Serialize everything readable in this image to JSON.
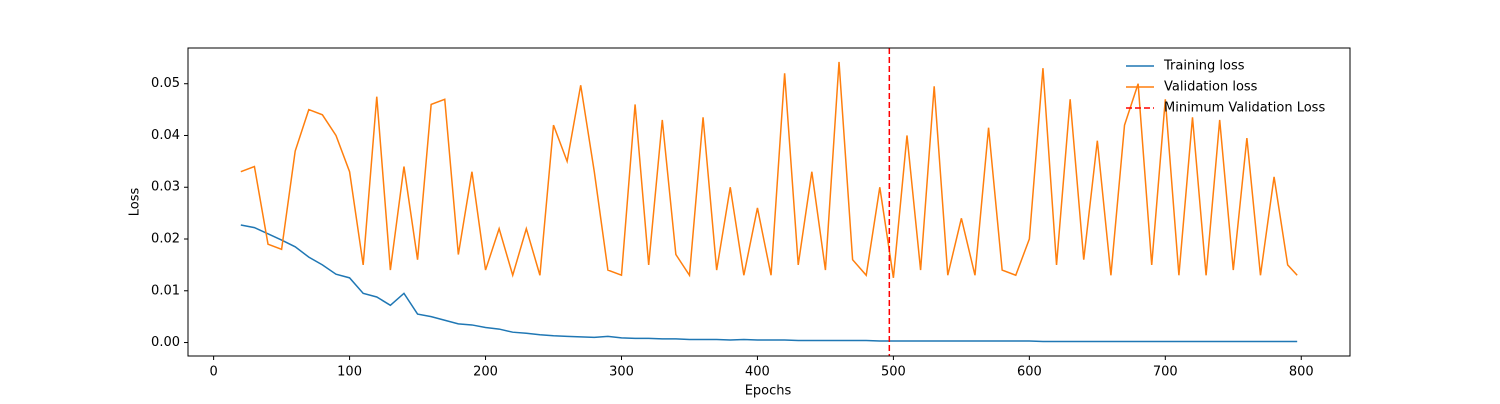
{
  "chart_data": {
    "type": "line",
    "xlabel": "Epochs",
    "ylabel": "Loss",
    "x": [
      20,
      30,
      40,
      50,
      60,
      70,
      80,
      90,
      100,
      110,
      120,
      130,
      140,
      150,
      160,
      170,
      180,
      190,
      200,
      210,
      220,
      230,
      240,
      250,
      260,
      270,
      280,
      290,
      300,
      310,
      320,
      330,
      340,
      350,
      360,
      370,
      380,
      390,
      400,
      410,
      420,
      430,
      440,
      450,
      460,
      470,
      480,
      490,
      500,
      510,
      520,
      530,
      540,
      550,
      560,
      570,
      580,
      590,
      600,
      610,
      620,
      630,
      640,
      650,
      660,
      670,
      680,
      690,
      700,
      710,
      720,
      730,
      740,
      750,
      760,
      770,
      780,
      790,
      797
    ],
    "series": [
      {
        "name": "Training loss",
        "color": "#1f77b4",
        "values": [
          0.0227,
          0.0222,
          0.021,
          0.0198,
          0.0185,
          0.0165,
          0.015,
          0.0132,
          0.0125,
          0.0095,
          0.0088,
          0.0072,
          0.0095,
          0.0055,
          0.005,
          0.0043,
          0.0036,
          0.0034,
          0.0029,
          0.0026,
          0.002,
          0.0018,
          0.0015,
          0.0013,
          0.0012,
          0.0011,
          0.001,
          0.0012,
          0.0009,
          0.0008,
          0.0008,
          0.0007,
          0.0007,
          0.0006,
          0.0006,
          0.0006,
          0.0005,
          0.0006,
          0.0005,
          0.0005,
          0.0005,
          0.0004,
          0.0004,
          0.0004,
          0.0004,
          0.0004,
          0.0004,
          0.0003,
          0.0003,
          0.0003,
          0.0003,
          0.0003,
          0.0003,
          0.0003,
          0.0003,
          0.0003,
          0.0003,
          0.0003,
          0.0003,
          0.0002,
          0.0002,
          0.0002,
          0.0002,
          0.0002,
          0.0002,
          0.0002,
          0.0002,
          0.0002,
          0.0002,
          0.0002,
          0.0002,
          0.0002,
          0.0002,
          0.0002,
          0.0002,
          0.0002,
          0.0002,
          0.0002,
          0.0002
        ]
      },
      {
        "name": "Validation loss",
        "color": "#ff7f0e",
        "values": [
          0.033,
          0.034,
          0.019,
          0.018,
          0.037,
          0.045,
          0.044,
          0.04,
          0.033,
          0.015,
          0.0475,
          0.014,
          0.034,
          0.016,
          0.046,
          0.047,
          0.017,
          0.033,
          0.014,
          0.022,
          0.013,
          0.022,
          0.013,
          0.042,
          0.035,
          0.0497,
          0.033,
          0.014,
          0.013,
          0.046,
          0.015,
          0.043,
          0.017,
          0.013,
          0.0435,
          0.014,
          0.03,
          0.013,
          0.026,
          0.013,
          0.052,
          0.015,
          0.033,
          0.014,
          0.0542,
          0.016,
          0.013,
          0.03,
          0.0125,
          0.04,
          0.014,
          0.0495,
          0.013,
          0.024,
          0.013,
          0.0415,
          0.014,
          0.013,
          0.02,
          0.053,
          0.015,
          0.047,
          0.016,
          0.039,
          0.013,
          0.042,
          0.05,
          0.015,
          0.047,
          0.013,
          0.0435,
          0.013,
          0.043,
          0.014,
          0.0395,
          0.013,
          0.032,
          0.015,
          0.013
        ]
      }
    ],
    "vline": {
      "x": 497,
      "label": "Minimum Validation Loss",
      "color": "#ff0000"
    },
    "xlim": [
      -18.85,
      835.85
    ],
    "xticks": [
      0,
      100,
      200,
      300,
      400,
      500,
      600,
      700,
      800
    ],
    "ylim": [
      -0.0026,
      0.0569
    ],
    "yticks": [
      {
        "value": 0,
        "label": "0.00"
      },
      {
        "value": 0.01,
        "label": "0.01"
      },
      {
        "value": 0.02,
        "label": "0.02"
      },
      {
        "value": 0.03,
        "label": "0.03"
      },
      {
        "value": 0.04,
        "label": "0.04"
      },
      {
        "value": 0.05,
        "label": "0.05"
      }
    ],
    "legend": "upper right"
  }
}
